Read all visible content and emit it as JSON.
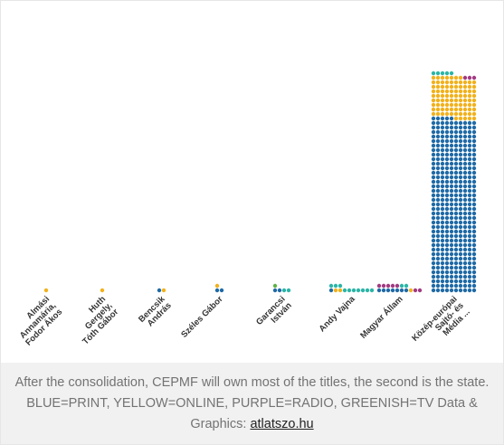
{
  "chart_data": {
    "type": "waffle",
    "colors": {
      "print": "#1f6aa6",
      "online": "#f2b11c",
      "radio": "#a23a82",
      "tv": "#2bb5a7",
      "tv_alt": "#5fb246"
    },
    "categories": [
      "Almási Annamária, Fodor Ákos",
      "Huth Gergely, Tóth Gábor",
      "Bencsik András",
      "Széles Gábor",
      "Garancsi István",
      "Andy Vajna",
      "Magyar Állam",
      "Közép-európai Sajtó- és Média ..."
    ],
    "series": [
      {
        "name": "PRINT",
        "values": [
          0,
          0,
          1,
          2,
          2,
          1,
          7,
          385
        ]
      },
      {
        "name": "ONLINE",
        "values": [
          1,
          1,
          1,
          1,
          0,
          2,
          1,
          92
        ]
      },
      {
        "name": "RADIO",
        "values": [
          0,
          0,
          0,
          0,
          0,
          0,
          7,
          3
        ]
      },
      {
        "name": "TV",
        "values": [
          0,
          0,
          0,
          0,
          3,
          10,
          2,
          5
        ]
      }
    ]
  },
  "caption": {
    "text": "After the consolidation, CEPMF will own most of the titles, the second is the state. BLUE=PRINT, YELLOW=ONLINE, PURPLE=RADIO, GREENISH=TV Data & Graphics: ",
    "link": "atlatszo.hu"
  }
}
